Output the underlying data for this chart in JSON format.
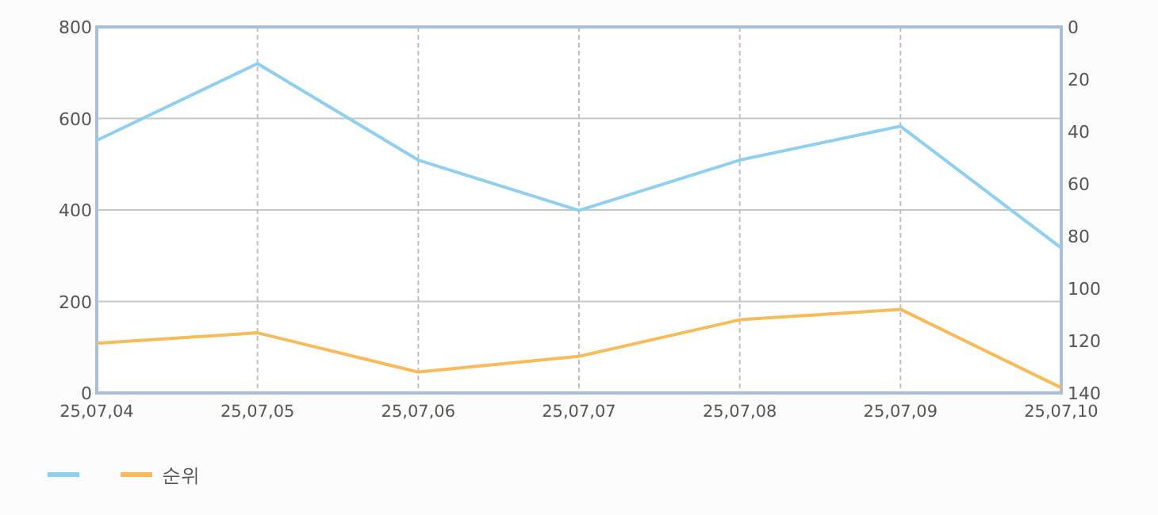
{
  "chart_data": {
    "type": "line",
    "categories": [
      "25,07,04",
      "25,07,05",
      "25,07,06",
      "25,07,07",
      "25,07,08",
      "25,07,09",
      "25,07,10"
    ],
    "series": [
      {
        "color": "#8fd0f0",
        "values": [
          552,
          720,
          509,
          399,
          509,
          583,
          317
        ]
      },
      {
        "name": "순위",
        "color": "#f8bb5a",
        "axis": "y2",
        "values": [
          121,
          117,
          132,
          126,
          112,
          108,
          138
        ]
      }
    ],
    "ylim": [
      0,
      800
    ],
    "yticks": [
      0,
      200,
      400,
      600,
      800
    ],
    "y2lim": [
      140,
      0
    ],
    "y2ticks": [
      0,
      20,
      40,
      60,
      80,
      100,
      120,
      140
    ],
    "grid": true,
    "legend": "bottom left",
    "marker": "none",
    "line_style": "solid"
  }
}
